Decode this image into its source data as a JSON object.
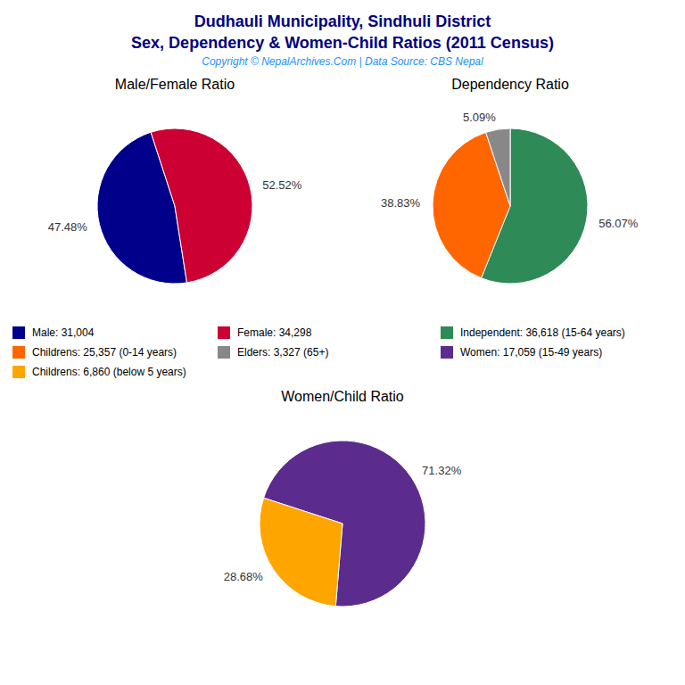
{
  "title": "Dudhauli Municipality, Sindhuli District\nSex, Dependency & Women-Child Ratios (2011 Census)",
  "subtitle": "Copyright © NepalArchives.Com | Data Source: CBS Nepal",
  "chart_data": [
    {
      "type": "pie",
      "title": "Male/Female Ratio",
      "categories": [
        "Male: 31,004",
        "Female: 34,298"
      ],
      "values": [
        47.48,
        52.52
      ],
      "value_labels": [
        "47.48%",
        "52.52%"
      ],
      "colors": [
        "#00008B",
        "#CC0033"
      ],
      "data_labels": true
    },
    {
      "type": "pie",
      "title": "Dependency Ratio",
      "categories": [
        "Independent: 36,618 (15-64 years)",
        "Childrens: 25,357 (0-14 years)",
        "Elders: 3,327 (65+)"
      ],
      "values": [
        56.07,
        38.83,
        5.09
      ],
      "value_labels": [
        "56.07%",
        "38.83%",
        "5.09%"
      ],
      "colors": [
        "#2E8B57",
        "#FF6600",
        "#888888"
      ],
      "data_labels": true
    },
    {
      "type": "pie",
      "title": "Women/Child Ratio",
      "categories": [
        "Women: 17,059 (15-49 years)",
        "Childrens: 6,860 (below 5 years)"
      ],
      "values": [
        71.32,
        28.68
      ],
      "value_labels": [
        "71.32%",
        "28.68%"
      ],
      "colors": [
        "#5B2C8D",
        "#FFA500"
      ],
      "data_labels": true
    }
  ]
}
